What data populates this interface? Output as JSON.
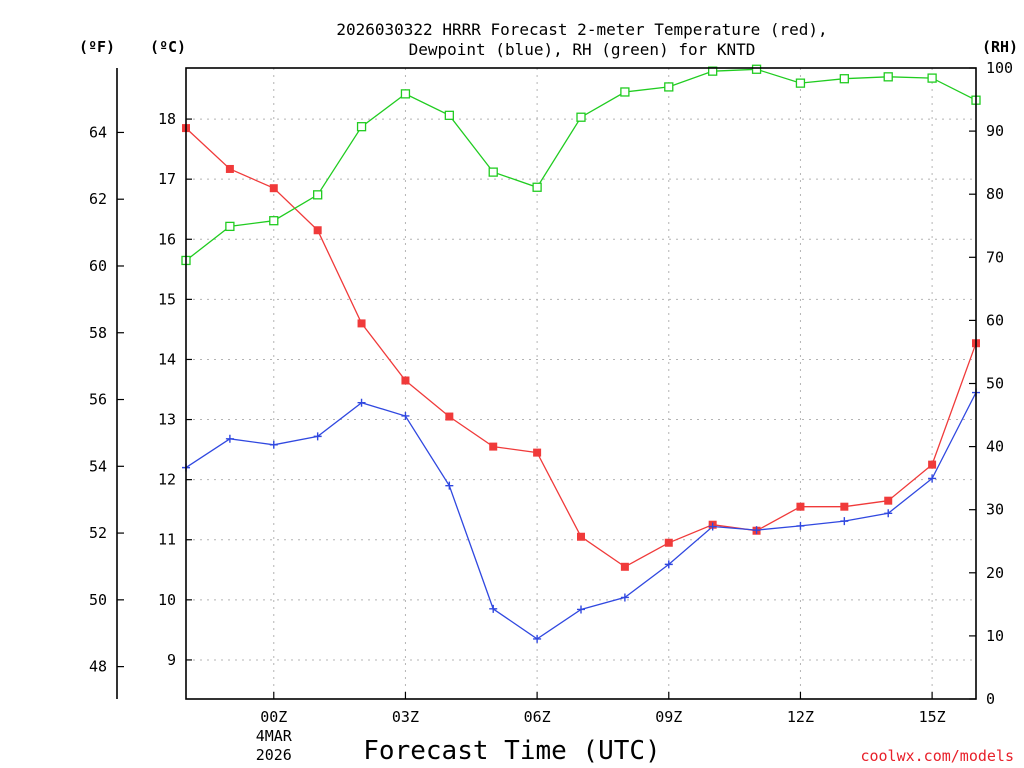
{
  "chart_data": {
    "type": "line",
    "title_line1": "2026030322 HRRR Forecast 2-meter Temperature (red),",
    "title_line2": "Dewpoint (blue), RH (green) for KNTD",
    "xlabel": "Forecast Time (UTC)",
    "credit": "coolwx.com/models",
    "units": {
      "f": "(ºF)",
      "c": "(ºC)",
      "rh": "(RH)"
    },
    "x_hours": [
      -2,
      -1,
      0,
      1,
      2,
      3,
      4,
      5,
      6,
      7,
      8,
      9,
      10,
      11,
      12,
      13,
      14,
      15,
      16
    ],
    "x_ticks": [
      {
        "h": 0,
        "label": "00Z",
        "sub1": "4MAR",
        "sub2": "2026"
      },
      {
        "h": 3,
        "label": "03Z"
      },
      {
        "h": 6,
        "label": "06Z"
      },
      {
        "h": 9,
        "label": "09Z"
      },
      {
        "h": 12,
        "label": "12Z"
      },
      {
        "h": 15,
        "label": "15Z"
      }
    ],
    "c_range": [
      8.35,
      18.85
    ],
    "c_ticks": [
      "9",
      "10",
      "11",
      "12",
      "13",
      "14",
      "15",
      "16",
      "17",
      "18"
    ],
    "f_ticks": [
      "48",
      "50",
      "52",
      "54",
      "56",
      "58",
      "60",
      "62",
      "64"
    ],
    "rh_range": [
      0,
      100
    ],
    "rh_ticks": [
      "0",
      "10",
      "20",
      "30",
      "40",
      "50",
      "60",
      "70",
      "80",
      "90",
      "100"
    ],
    "series": [
      {
        "name": "Temperature",
        "axis": "c",
        "color": "#f03a3a",
        "marker": "filled-square",
        "values": [
          17.85,
          17.17,
          16.85,
          16.15,
          14.6,
          13.65,
          13.05,
          12.55,
          12.45,
          11.05,
          10.55,
          10.95,
          11.25,
          11.15,
          11.55,
          11.55,
          11.65,
          12.25,
          14.27
        ]
      },
      {
        "name": "Dewpoint",
        "axis": "c",
        "color": "#3048e0",
        "marker": "plus",
        "values": [
          12.2,
          12.68,
          12.58,
          12.72,
          13.28,
          13.06,
          11.9,
          9.85,
          9.35,
          9.84,
          10.04,
          10.59,
          11.22,
          11.16,
          11.23,
          11.31,
          11.44,
          12.02,
          13.45
        ]
      },
      {
        "name": "RH",
        "axis": "rh",
        "color": "#20cc20",
        "marker": "open-square",
        "values": [
          69.5,
          74.9,
          75.8,
          79.9,
          90.7,
          95.9,
          92.5,
          83.5,
          81.1,
          92.2,
          96.2,
          97.0,
          99.5,
          99.8,
          97.6,
          98.3,
          98.6,
          98.4,
          94.9
        ]
      }
    ]
  }
}
